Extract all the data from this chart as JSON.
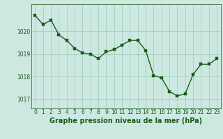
{
  "x": [
    0,
    1,
    2,
    3,
    4,
    5,
    6,
    7,
    8,
    9,
    10,
    11,
    12,
    13,
    14,
    15,
    16,
    17,
    18,
    19,
    20,
    21,
    22,
    23
  ],
  "y": [
    1020.7,
    1020.3,
    1020.5,
    1019.85,
    1019.6,
    1019.25,
    1019.05,
    1019.0,
    1018.8,
    1019.1,
    1019.2,
    1019.4,
    1019.6,
    1019.6,
    1019.15,
    1018.05,
    1017.95,
    1017.35,
    1017.15,
    1017.25,
    1018.1,
    1018.55,
    1018.55,
    1018.8
  ],
  "line_color": "#1a5c1a",
  "marker_color": "#1a5c1a",
  "bg_color": "#cce8e0",
  "grid_color": "#99ccbb",
  "xlabel": "Graphe pression niveau de la mer (hPa)",
  "xlabel_fontsize": 7.0,
  "ylim_min": 1016.6,
  "ylim_max": 1021.2,
  "yticks": [
    1017,
    1018,
    1019,
    1020
  ],
  "xtick_labels": [
    "0",
    "1",
    "2",
    "3",
    "4",
    "5",
    "6",
    "7",
    "8",
    "9",
    "10",
    "11",
    "12",
    "13",
    "14",
    "15",
    "16",
    "17",
    "18",
    "19",
    "20",
    "21",
    "22",
    "23"
  ],
  "tick_fontsize": 5.5,
  "marker_size": 2.5,
  "line_width": 1.0
}
